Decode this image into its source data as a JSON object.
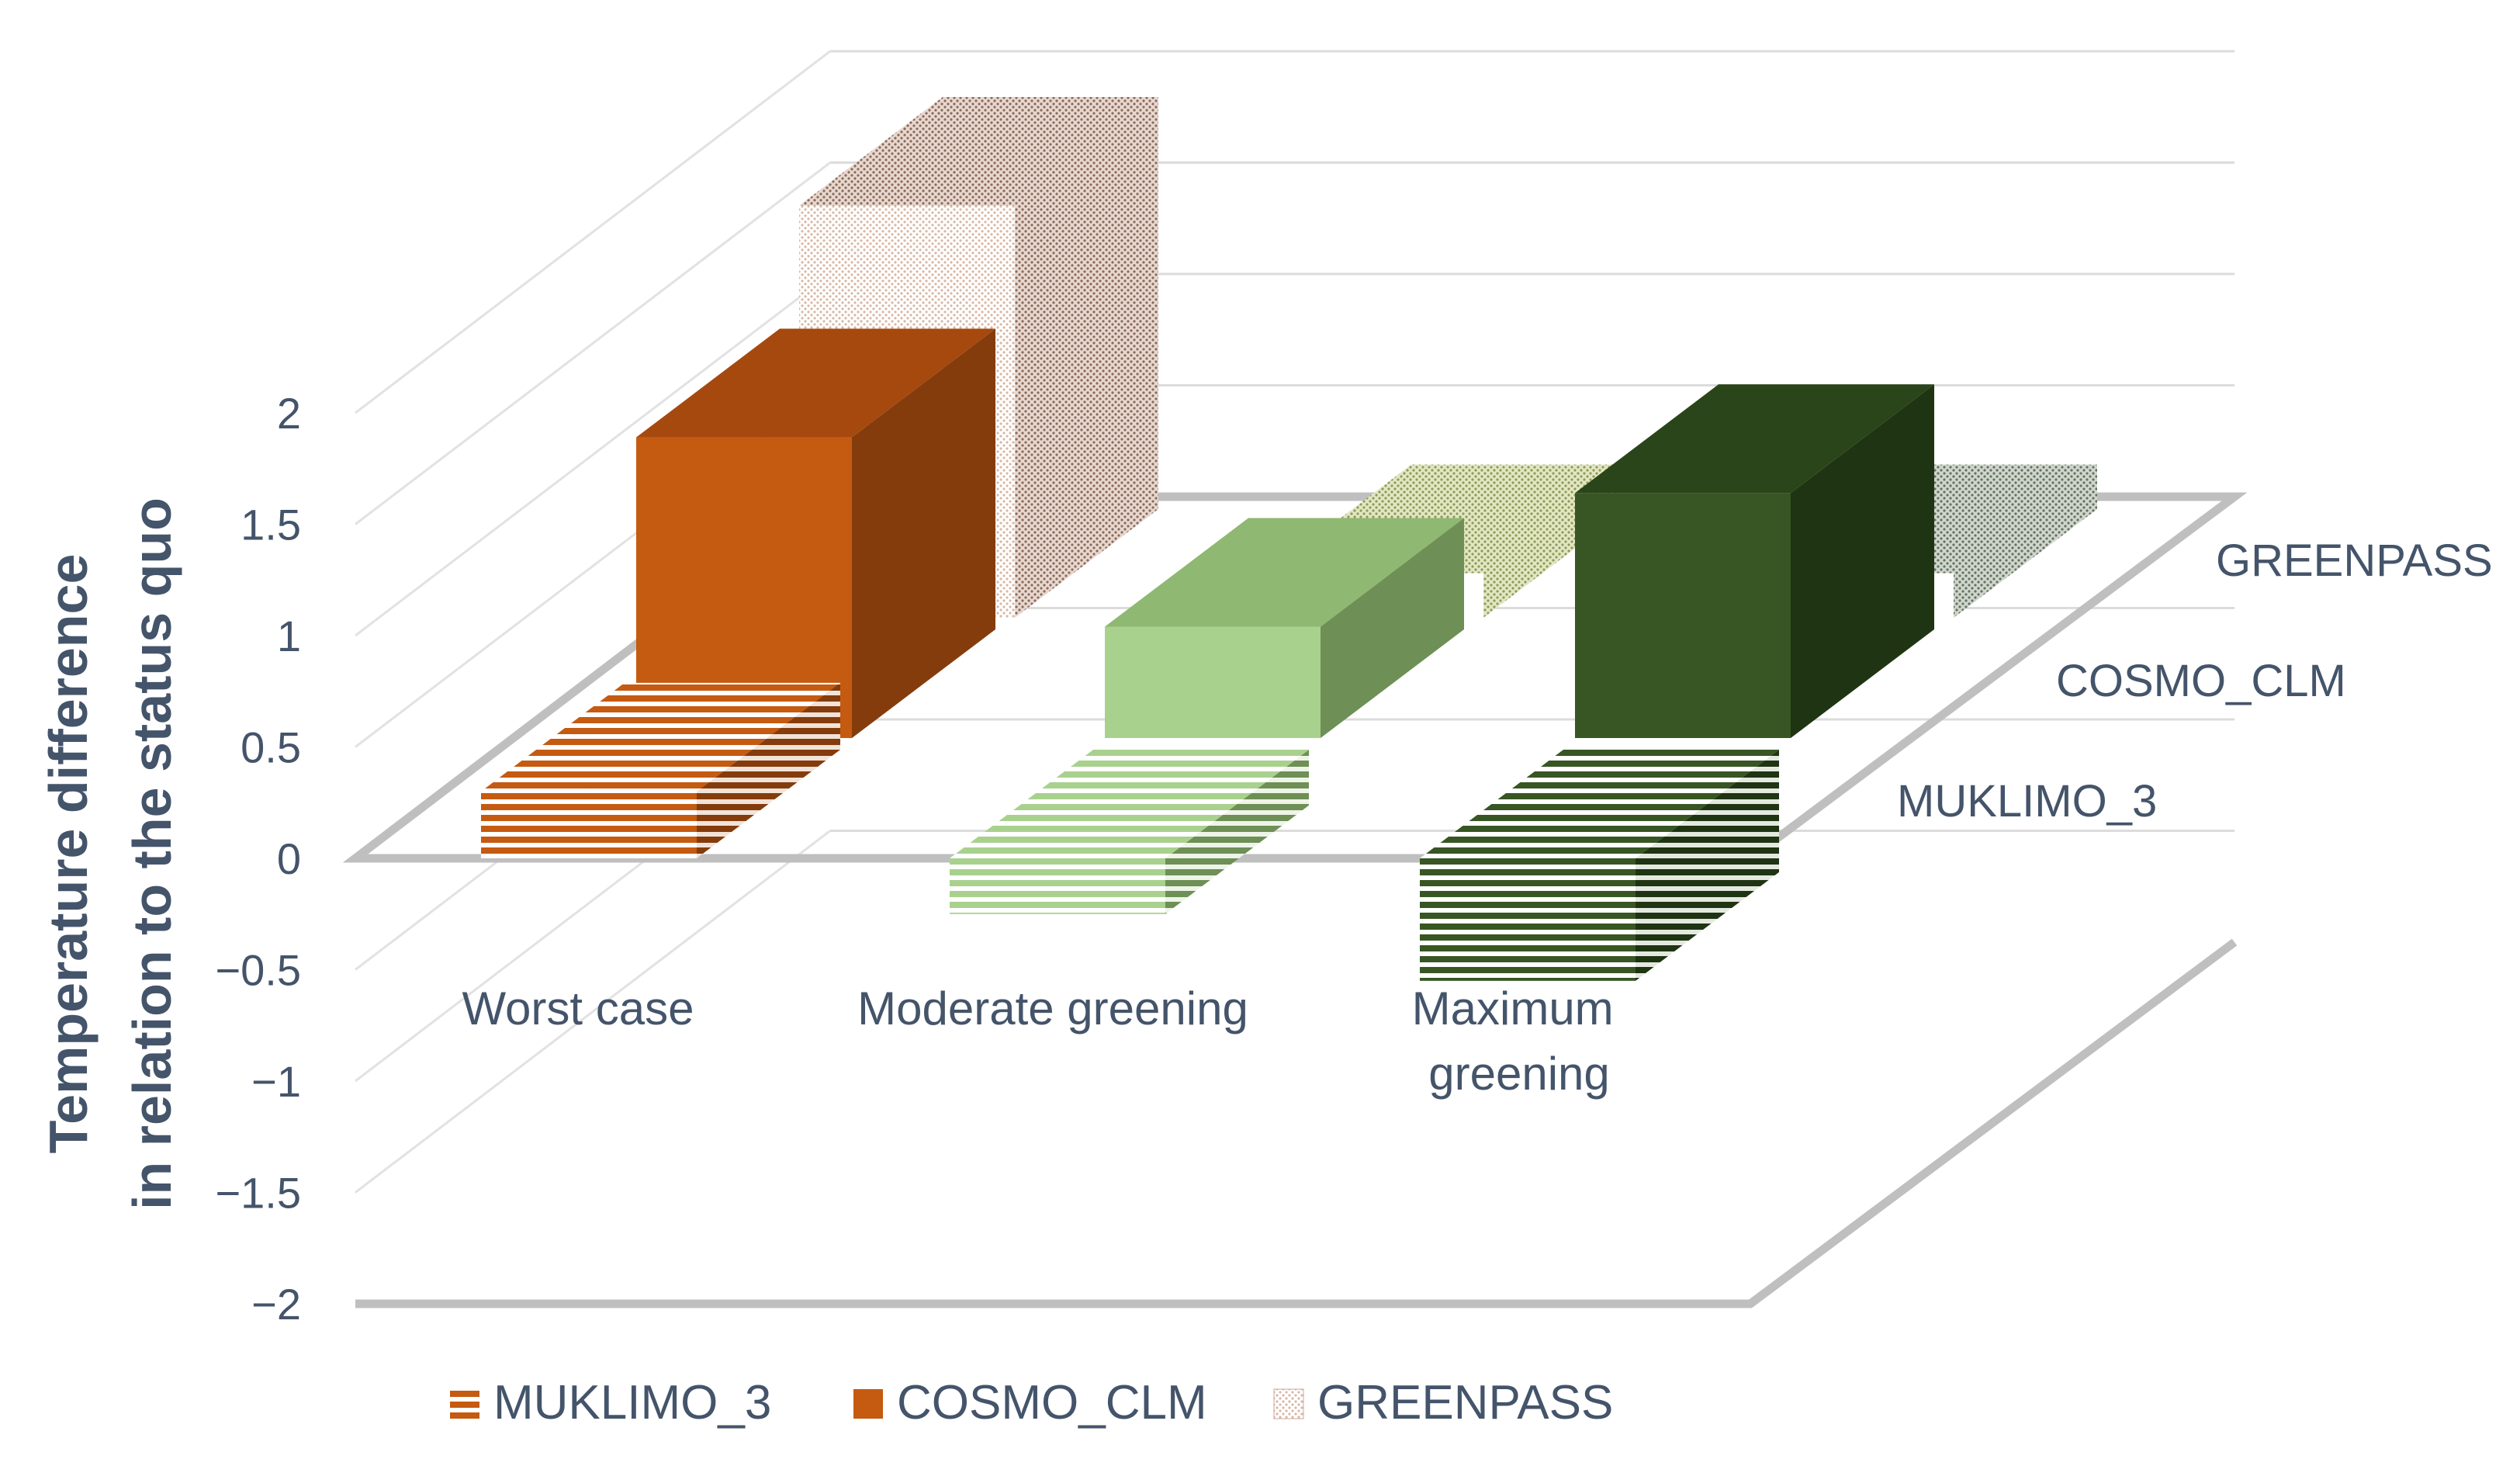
{
  "chart_data": {
    "type": "bar",
    "subtype": "3d-clustered-column",
    "ylabel_line1": "Temperature difference",
    "ylabel_line2": "in relation to the status quo",
    "yticks": [
      "2",
      "1.5",
      "1",
      "0.5",
      "0",
      "−0.5",
      "−1",
      "−1.5",
      "−2"
    ],
    "ylim": [
      -2,
      2
    ],
    "categories": [
      "Worst case",
      "Moderate greening",
      "Maximum greening"
    ],
    "series": [
      {
        "name": "MUKLIMO_3",
        "values": [
          0.3,
          -0.25,
          -0.55
        ],
        "pattern": "horizontal-stripes"
      },
      {
        "name": "COSMO_CLM",
        "values": [
          1.35,
          0.5,
          1.1
        ],
        "pattern": "solid"
      },
      {
        "name": "GREENPASS",
        "values": [
          1.85,
          0.2,
          0.2
        ],
        "pattern": "dots"
      }
    ],
    "colors": {
      "worst_case": {
        "front": "#c55a11",
        "side": "#843c0c",
        "top": "#a6490f"
      },
      "moderate_greening": {
        "front": "#a9d18e",
        "side": "#6e8f55",
        "top": "#8fb872"
      },
      "maximum_greening": {
        "front": "#375623",
        "side": "#1f3412",
        "top": "#2b451a"
      },
      "greenpass_worst": "#c9a99a",
      "greenpass_moderate": "#d4dca8",
      "greenpass_maximum": "#b5bfb2"
    },
    "legend_position": "bottom",
    "grid": true
  }
}
